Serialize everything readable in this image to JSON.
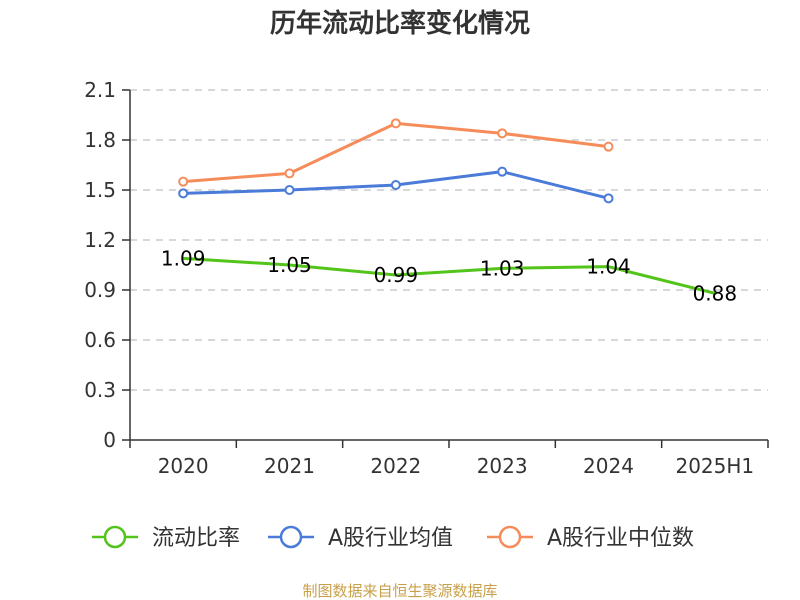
{
  "chart_data": {
    "type": "line",
    "title": "历年流动比率变化情况",
    "categories": [
      "2020",
      "2021",
      "2022",
      "2023",
      "2024",
      "2025H1"
    ],
    "ylim": [
      0,
      2.1
    ],
    "yticks": [
      "0",
      "0.3",
      "0.6",
      "0.9",
      "1.2",
      "1.5",
      "1.8",
      "2.1"
    ],
    "grid": true,
    "legend_position": "bottom",
    "series": [
      {
        "name": "流动比率",
        "color": "#52c41a",
        "values": [
          1.09,
          1.05,
          0.99,
          1.03,
          1.04,
          0.88
        ],
        "labels": [
          "1.09",
          "1.05",
          "0.99",
          "1.03",
          "1.04",
          "0.88"
        ],
        "show_labels": true
      },
      {
        "name": "A股行业均值",
        "color": "#4a7bd8",
        "values": [
          1.48,
          1.5,
          1.53,
          1.61,
          1.45,
          null
        ],
        "show_labels": false
      },
      {
        "name": "A股行业中位数",
        "color": "#f58c5a",
        "values": [
          1.55,
          1.6,
          1.9,
          1.84,
          1.76,
          null
        ],
        "show_labels": false
      }
    ]
  },
  "source": "制图数据来自恒生聚源数据库"
}
